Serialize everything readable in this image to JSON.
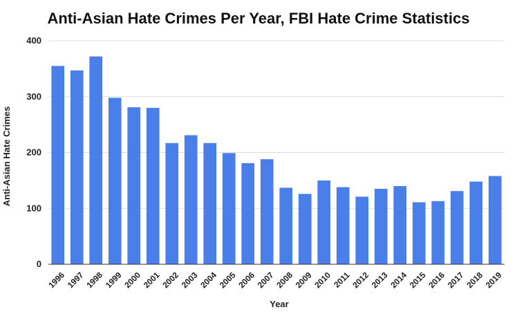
{
  "chart_data": {
    "type": "bar",
    "title": "Anti-Asian Hate Crimes Per Year, FBI Hate Crime Statistics",
    "xlabel": "Year",
    "ylabel": "Anti-Asian Hate Crimes",
    "ylim": [
      0,
      400
    ],
    "yticks": [
      "0",
      "100",
      "200",
      "300",
      "400"
    ],
    "grid": true,
    "bar_color": "#4a7ee8",
    "categories": [
      "1996",
      "1997",
      "1998",
      "1999",
      "2000",
      "2001",
      "2002",
      "2003",
      "2004",
      "2005",
      "2006",
      "2007",
      "2008",
      "2009",
      "2010",
      "2011",
      "2012",
      "2013",
      "2014",
      "2015",
      "2016",
      "2017",
      "2018",
      "2019"
    ],
    "values": [
      355,
      347,
      372,
      298,
      281,
      280,
      217,
      231,
      217,
      199,
      181,
      188,
      137,
      126,
      150,
      138,
      121,
      135,
      140,
      111,
      113,
      131,
      148,
      158
    ]
  }
}
